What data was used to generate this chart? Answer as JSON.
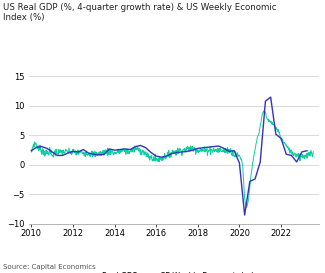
{
  "title": "US Real GDP (%, 4-quarter growth rate) & US Weekly Economic\nIndex (%)",
  "source": "Source: Capital Economics",
  "legend_labels": [
    "Real GDP",
    "CE Weekly Economic Index"
  ],
  "legend_colors": [
    "#3333bb",
    "#00cc99"
  ],
  "xlim": [
    2009.9,
    2023.8
  ],
  "ylim": [
    -10,
    15
  ],
  "yticks": [
    -10,
    -5,
    0,
    5,
    10,
    15
  ],
  "xticks": [
    2010,
    2012,
    2014,
    2016,
    2018,
    2020,
    2022
  ],
  "gdp_color": "#3333bb",
  "wei_color": "#00cc99",
  "gdp_data": {
    "x": [
      2010.0,
      2010.25,
      2010.5,
      2010.75,
      2011.0,
      2011.25,
      2011.5,
      2011.75,
      2012.0,
      2012.25,
      2012.5,
      2012.75,
      2013.0,
      2013.25,
      2013.5,
      2013.75,
      2014.0,
      2014.25,
      2014.5,
      2014.75,
      2015.0,
      2015.25,
      2015.5,
      2015.75,
      2016.0,
      2016.25,
      2016.5,
      2016.75,
      2017.0,
      2017.25,
      2017.5,
      2017.75,
      2018.0,
      2018.25,
      2018.5,
      2018.75,
      2019.0,
      2019.25,
      2019.5,
      2019.75,
      2020.0,
      2020.25,
      2020.5,
      2020.75,
      2021.0,
      2021.25,
      2021.5,
      2021.75,
      2022.0,
      2022.25,
      2022.5,
      2022.75,
      2023.0,
      2023.25
    ],
    "y": [
      2.4,
      3.0,
      3.1,
      2.8,
      2.2,
      1.6,
      1.6,
      2.0,
      2.3,
      2.2,
      2.6,
      2.0,
      1.8,
      1.7,
      1.8,
      2.7,
      2.5,
      2.6,
      2.7,
      2.6,
      3.1,
      3.3,
      2.9,
      2.1,
      1.5,
      1.3,
      1.5,
      1.9,
      2.1,
      2.2,
      2.3,
      2.5,
      2.8,
      2.9,
      3.0,
      3.1,
      3.2,
      2.8,
      2.3,
      2.4,
      0.3,
      -8.5,
      -2.8,
      -2.4,
      0.5,
      10.8,
      11.5,
      5.2,
      4.5,
      1.8,
      1.6,
      0.5,
      2.2,
      2.4
    ]
  },
  "wei_data": {
    "x": [
      2010.0,
      2010.05,
      2010.1,
      2010.15,
      2010.2,
      2010.25,
      2010.3,
      2010.4,
      2010.5,
      2010.6,
      2010.7,
      2010.75,
      2010.85,
      2010.9,
      2011.0,
      2011.1,
      2011.2,
      2011.25,
      2011.4,
      2011.5,
      2011.6,
      2011.75,
      2012.0,
      2012.2,
      2012.4,
      2012.5,
      2012.6,
      2012.75,
      2013.0,
      2013.2,
      2013.4,
      2013.5,
      2013.6,
      2013.75,
      2014.0,
      2014.2,
      2014.4,
      2014.5,
      2014.6,
      2014.75,
      2015.0,
      2015.2,
      2015.4,
      2015.5,
      2015.6,
      2015.75,
      2016.0,
      2016.2,
      2016.4,
      2016.5,
      2016.6,
      2016.75,
      2017.0,
      2017.2,
      2017.4,
      2017.5,
      2017.6,
      2017.75,
      2018.0,
      2018.2,
      2018.4,
      2018.5,
      2018.6,
      2018.75,
      2019.0,
      2019.2,
      2019.4,
      2019.5,
      2019.6,
      2019.75,
      2020.0,
      2020.05,
      2020.1,
      2020.15,
      2020.2,
      2020.25,
      2020.3,
      2020.35,
      2020.4,
      2020.45,
      2020.5,
      2020.55,
      2020.6,
      2020.65,
      2020.7,
      2020.75,
      2020.8,
      2020.85,
      2020.9,
      2020.95,
      2021.0,
      2021.05,
      2021.1,
      2021.15,
      2021.2,
      2021.25,
      2021.3,
      2021.35,
      2021.4,
      2021.5,
      2021.6,
      2021.7,
      2021.75,
      2021.85,
      2021.9,
      2022.0,
      2022.1,
      2022.2,
      2022.3,
      2022.4,
      2022.5,
      2022.6,
      2022.75,
      2022.9,
      2023.0,
      2023.1,
      2023.2,
      2023.3,
      2023.5
    ],
    "y": [
      2.0,
      2.8,
      3.5,
      3.6,
      3.7,
      3.4,
      3.0,
      2.8,
      2.5,
      2.2,
      2.0,
      2.0,
      2.2,
      2.3,
      1.5,
      2.0,
      2.2,
      2.2,
      2.1,
      2.3,
      2.2,
      2.2,
      2.2,
      2.0,
      2.1,
      2.1,
      2.0,
      2.0,
      1.8,
      1.9,
      2.0,
      2.2,
      2.2,
      2.3,
      2.0,
      2.2,
      2.4,
      2.4,
      2.3,
      2.3,
      2.8,
      2.5,
      2.2,
      1.8,
      1.4,
      1.2,
      0.9,
      1.0,
      1.4,
      1.5,
      1.7,
      2.2,
      2.3,
      2.5,
      2.6,
      2.7,
      2.8,
      2.8,
      2.5,
      2.5,
      2.4,
      2.5,
      2.6,
      2.5,
      2.5,
      2.4,
      2.5,
      2.5,
      2.3,
      1.8,
      1.5,
      1.3,
      0.8,
      0.2,
      -2.5,
      -5.5,
      -7.0,
      -7.2,
      -6.5,
      -5.5,
      -3.5,
      -2.0,
      -0.5,
      0.5,
      1.5,
      2.5,
      3.5,
      4.5,
      5.0,
      5.5,
      6.5,
      7.5,
      8.5,
      9.0,
      9.2,
      8.8,
      8.0,
      8.0,
      7.5,
      7.2,
      7.0,
      6.5,
      6.3,
      5.8,
      5.5,
      4.5,
      4.0,
      3.5,
      3.0,
      2.5,
      2.2,
      2.0,
      1.8,
      1.6,
      1.5,
      1.5,
      1.6,
      1.7,
      1.8
    ]
  }
}
